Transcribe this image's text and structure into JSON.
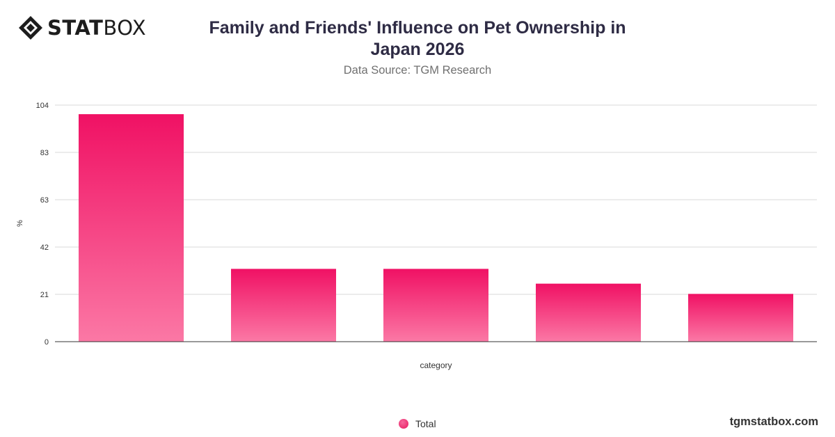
{
  "brand": {
    "logo_bold": "STAT",
    "logo_light": "BOX",
    "logo_icon": "statbox-diamond-icon",
    "website": "tgmstatbox.com"
  },
  "colors": {
    "bar_top": "#f01164",
    "bar_bottom": "#fb78a5",
    "title": "#2e2b44",
    "grid": "#d9d9d9"
  },
  "chart_data": {
    "type": "bar",
    "title": "Family and Friends' Influence on Pet Ownership in Japan 2026",
    "subtitle": "Data Source: TGM Research",
    "xlabel": "category",
    "ylabel": "%",
    "ylim": [
      0,
      104
    ],
    "yticks": [
      "0",
      "21",
      "42",
      "63",
      "83",
      "104"
    ],
    "ytick_values": [
      0,
      20.8,
      41.6,
      62.4,
      83.2,
      104
    ],
    "categories": [
      "",
      "",
      "",
      "",
      ""
    ],
    "series": [
      {
        "name": "Total",
        "values": [
          100,
          32,
          32,
          25.5,
          21
        ]
      }
    ],
    "grid": true,
    "legend": "bottom-center"
  }
}
